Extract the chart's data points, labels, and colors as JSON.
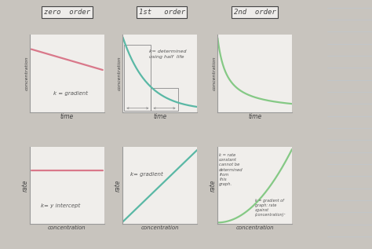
{
  "background_color": "#c8c4be",
  "paper_color": "#f0eeeb",
  "titles": [
    "zero  order",
    "1st   order",
    "2nd  order"
  ],
  "pink_color": "#d9788a",
  "green_teal_color": "#5ab8a5",
  "green_light_color": "#85c985",
  "axis_color": "#888888",
  "spine_color": "#999999",
  "text_color": "#444444",
  "title_box_color": "#eeecea",
  "note_color": "#555555"
}
